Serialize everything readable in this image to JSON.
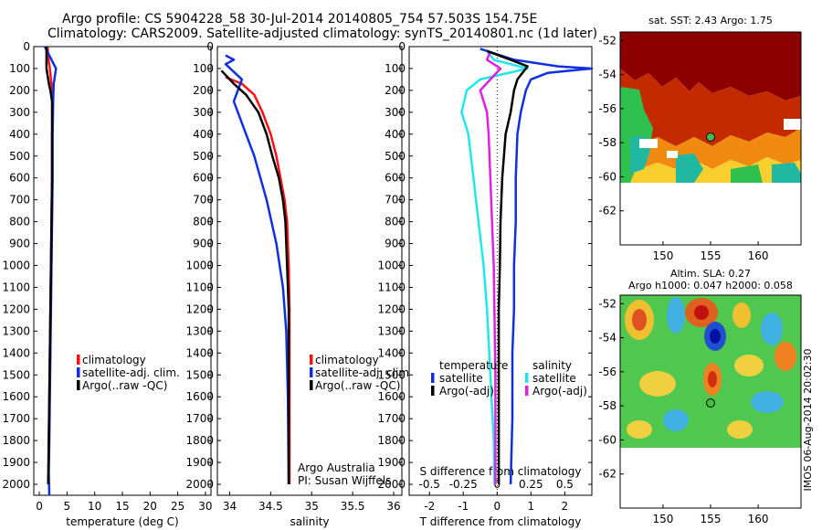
{
  "header": {
    "line1": "Argo profile: CS 5904228_58 30-Jul-2014 20140805_754 57.503S 154.75E",
    "line2": "Climatology: CARS2009. Satellite-adjusted climatology: synTS_20140801.nc (1d later)"
  },
  "colors": {
    "climatology": "#ff1010",
    "satellite_adj": "#1030e0",
    "argo": "#000000",
    "temperature_satellite": "#1030e0",
    "salinity_satellite": "#20e8e8",
    "salinity_argo": "#e020e0",
    "temperature_argo": "#000000"
  },
  "chart_data": [
    {
      "id": "temperature",
      "type": "line",
      "xlabel": "temperature (deg C)",
      "ylabel": "",
      "xlim": [
        -1,
        31
      ],
      "ylim": [
        2050,
        0
      ],
      "xticks": [
        0,
        5,
        10,
        15,
        20,
        25,
        30
      ],
      "yticks": [
        0,
        100,
        200,
        300,
        400,
        500,
        600,
        700,
        800,
        900,
        1000,
        1100,
        1200,
        1300,
        1400,
        1500,
        1600,
        1700,
        1800,
        1900,
        2000
      ],
      "legend": [
        "climatology",
        "satellite-adj. clim.",
        "Argo(..raw -QC)"
      ],
      "series": [
        {
          "name": "climatology",
          "color_key": "climatology",
          "points": [
            [
              1.5,
              0
            ],
            [
              1.6,
              50
            ],
            [
              1.9,
              100
            ],
            [
              2.1,
              150
            ],
            [
              2.3,
              200
            ],
            [
              2.4,
              300
            ],
            [
              2.3,
              400
            ],
            [
              2.3,
              600
            ],
            [
              2.2,
              800
            ],
            [
              2.1,
              1000
            ],
            [
              2.0,
              1200
            ],
            [
              1.9,
              1400
            ],
            [
              1.8,
              1600
            ],
            [
              1.7,
              1800
            ],
            [
              1.6,
              2000
            ]
          ]
        },
        {
          "name": "satellite-adj. clim.",
          "color_key": "satellite_adj",
          "points": [
            [
              1.0,
              0
            ],
            [
              2.4,
              70
            ],
            [
              3.0,
              100
            ],
            [
              2.6,
              170
            ],
            [
              2.5,
              250
            ],
            [
              2.4,
              400
            ],
            [
              2.4,
              600
            ],
            [
              2.3,
              800
            ],
            [
              2.2,
              1000
            ],
            [
              2.1,
              1200
            ],
            [
              2.0,
              1400
            ],
            [
              1.9,
              1600
            ],
            [
              1.8,
              1800
            ],
            [
              1.7,
              1950
            ],
            [
              1.8,
              2050
            ]
          ]
        },
        {
          "name": "Argo(..raw -QC)",
          "color_key": "argo",
          "points": [
            [
              1.3,
              0
            ],
            [
              1.3,
              100
            ],
            [
              1.6,
              150
            ],
            [
              1.8,
              180
            ],
            [
              2.0,
              200
            ],
            [
              2.3,
              250
            ],
            [
              2.3,
              400
            ],
            [
              2.3,
              600
            ],
            [
              2.2,
              800
            ],
            [
              2.1,
              1000
            ],
            [
              2.0,
              1200
            ],
            [
              1.9,
              1400
            ],
            [
              1.8,
              1600
            ],
            [
              1.7,
              1800
            ],
            [
              1.6,
              2000
            ]
          ]
        }
      ]
    },
    {
      "id": "salinity",
      "type": "line",
      "xlabel": "salinity",
      "ylabel": "",
      "xlim": [
        33.85,
        36.1
      ],
      "ylim": [
        2050,
        0
      ],
      "xticks": [
        34,
        34.5,
        35,
        35.5,
        36
      ],
      "yticks": [
        0,
        100,
        200,
        300,
        400,
        500,
        600,
        700,
        800,
        900,
        1000,
        1100,
        1200,
        1300,
        1400,
        1500,
        1600,
        1700,
        1800,
        1900,
        2000
      ],
      "legend": [
        "climatology",
        "satellite-adj. clim.",
        "Argo(..raw -QC)"
      ],
      "annotation_lines": [
        "Argo Australia",
        "PI: Susan Wijffels"
      ],
      "series": [
        {
          "name": "climatology",
          "color_key": "climatology",
          "points": [
            [
              33.95,
              140
            ],
            [
              34.15,
              170
            ],
            [
              34.3,
              220
            ],
            [
              34.4,
              300
            ],
            [
              34.5,
              400
            ],
            [
              34.57,
              500
            ],
            [
              34.62,
              600
            ],
            [
              34.67,
              700
            ],
            [
              34.7,
              800
            ],
            [
              34.72,
              1000
            ],
            [
              34.73,
              1200
            ],
            [
              34.73,
              1500
            ],
            [
              34.73,
              2000
            ]
          ]
        },
        {
          "name": "satellite-adj. clim.",
          "color_key": "satellite_adj",
          "points": [
            [
              33.95,
              40
            ],
            [
              34.05,
              60
            ],
            [
              33.95,
              80
            ],
            [
              34.15,
              150
            ],
            [
              34.05,
              250
            ],
            [
              34.15,
              350
            ],
            [
              34.3,
              500
            ],
            [
              34.45,
              700
            ],
            [
              34.57,
              900
            ],
            [
              34.65,
              1100
            ],
            [
              34.69,
              1300
            ],
            [
              34.71,
              1600
            ],
            [
              34.72,
              2000
            ]
          ]
        },
        {
          "name": "Argo(..raw -QC)",
          "color_key": "argo",
          "points": [
            [
              33.9,
              110
            ],
            [
              34.05,
              170
            ],
            [
              34.2,
              220
            ],
            [
              34.35,
              300
            ],
            [
              34.45,
              400
            ],
            [
              34.52,
              500
            ],
            [
              34.6,
              600
            ],
            [
              34.65,
              700
            ],
            [
              34.68,
              800
            ],
            [
              34.7,
              1000
            ],
            [
              34.72,
              1200
            ],
            [
              34.72,
              1500
            ],
            [
              34.72,
              2000
            ]
          ]
        }
      ]
    },
    {
      "id": "differences",
      "type": "line",
      "xlabel": "T difference from climatology",
      "top_axis_label": "S difference from climatology",
      "xlim": [
        -2.6,
        2.8
      ],
      "ylim": [
        2050,
        0
      ],
      "xticks": [
        -2,
        -1,
        0,
        1,
        2
      ],
      "top_ticks": [
        "-0.5",
        "-0.25",
        "0",
        "0.25",
        "0.5"
      ],
      "top_tick_values": [
        -2,
        -1,
        0,
        1,
        2
      ],
      "yticks": [
        0,
        100,
        200,
        300,
        400,
        500,
        600,
        700,
        800,
        900,
        1000,
        1100,
        1200,
        1300,
        1400,
        1500,
        1600,
        1700,
        1800,
        1900,
        2000
      ],
      "legend_headers": [
        "temperature",
        "salinity"
      ],
      "legend_left": [
        "satellite",
        "Argo(-adj)"
      ],
      "legend_right": [
        "satellite",
        "Argo(-adj)"
      ],
      "series": [
        {
          "name": "temperature satellite",
          "color_key": "temperature_satellite",
          "points": [
            [
              -0.5,
              10
            ],
            [
              0.5,
              60
            ],
            [
              1.8,
              90
            ],
            [
              2.8,
              100
            ],
            [
              1.5,
              120
            ],
            [
              1.0,
              150
            ],
            [
              0.85,
              200
            ],
            [
              0.7,
              300
            ],
            [
              0.6,
              400
            ],
            [
              0.55,
              600
            ],
            [
              0.55,
              800
            ],
            [
              0.5,
              1000
            ],
            [
              0.5,
              1200
            ],
            [
              0.45,
              1400
            ],
            [
              0.45,
              1700
            ],
            [
              0.4,
              2000
            ]
          ]
        },
        {
          "name": "salinity satellite",
          "color_key": "salinity_satellite",
          "points": [
            [
              -0.3,
              20
            ],
            [
              -0.1,
              60
            ],
            [
              0.9,
              100
            ],
            [
              -0.5,
              150
            ],
            [
              -0.9,
              200
            ],
            [
              -1.05,
              300
            ],
            [
              -0.85,
              400
            ],
            [
              -0.7,
              600
            ],
            [
              -0.55,
              800
            ],
            [
              -0.4,
              1000
            ],
            [
              -0.3,
              1200
            ],
            [
              -0.2,
              1500
            ],
            [
              -0.1,
              1800
            ],
            [
              -0.08,
              2000
            ]
          ]
        },
        {
          "name": "salinity Argo",
          "color_key": "salinity_argo",
          "points": [
            [
              -0.2,
              20
            ],
            [
              -0.3,
              60
            ],
            [
              0.1,
              100
            ],
            [
              -0.5,
              200
            ],
            [
              -0.3,
              300
            ],
            [
              -0.25,
              400
            ],
            [
              -0.2,
              600
            ],
            [
              -0.15,
              800
            ],
            [
              -0.1,
              1000
            ],
            [
              -0.08,
              1200
            ],
            [
              -0.05,
              1500
            ],
            [
              -0.05,
              2000
            ]
          ]
        },
        {
          "name": "temperature Argo",
          "color_key": "temperature_argo",
          "points": [
            [
              -0.3,
              20
            ],
            [
              0.4,
              60
            ],
            [
              0.9,
              90
            ],
            [
              0.6,
              150
            ],
            [
              0.5,
              200
            ],
            [
              0.4,
              300
            ],
            [
              0.25,
              400
            ],
            [
              0.15,
              600
            ],
            [
              0.1,
              800
            ],
            [
              0.08,
              1000
            ],
            [
              0.05,
              1200
            ],
            [
              0.05,
              1500
            ],
            [
              0.05,
              2000
            ]
          ]
        }
      ]
    }
  ],
  "maps": [
    {
      "id": "sst_map",
      "title": "sat. SST: 2.43 Argo: 1.75",
      "xticks": [
        "150",
        "155",
        "160"
      ],
      "yticks": [
        "-52",
        "-54",
        "-56",
        "-58",
        "-60",
        "-62"
      ],
      "lon_range": [
        145.5,
        164.5
      ],
      "lat_range": [
        -64,
        -51.5
      ],
      "float_lon": 154.75,
      "float_lat": -57.5
    },
    {
      "id": "sla_map",
      "title_lines": [
        "Altim. SLA: 0.27",
        "Argo h1000: 0.047 h2000: 0.058"
      ],
      "xticks": [
        "150",
        "155",
        "160"
      ],
      "yticks": [
        "-52",
        "-54",
        "-56",
        "-58",
        "-60",
        "-62"
      ],
      "lon_range": [
        145.5,
        164.5
      ],
      "lat_range": [
        -64,
        -51.5
      ],
      "float_lon": 154.75,
      "float_lat": -57.5,
      "side_label": "IMOS 06-Aug-2014 20:02:30"
    }
  ]
}
